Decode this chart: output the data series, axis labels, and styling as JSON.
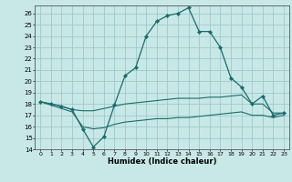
{
  "xlabel": "Humidex (Indice chaleur)",
  "background_color": "#c8e8e8",
  "grid_color": "#a0c8c8",
  "line_color": "#1a6b6b",
  "xlim": [
    -0.5,
    23.5
  ],
  "ylim": [
    14,
    26.7
  ],
  "yticks": [
    14,
    15,
    16,
    17,
    18,
    19,
    20,
    21,
    22,
    23,
    24,
    25,
    26
  ],
  "xticks": [
    0,
    1,
    2,
    3,
    4,
    5,
    6,
    7,
    8,
    9,
    10,
    11,
    12,
    13,
    14,
    15,
    16,
    17,
    18,
    19,
    20,
    21,
    22,
    23
  ],
  "series_main": {
    "x": [
      0,
      1,
      2,
      3,
      4,
      5,
      6,
      7,
      8,
      9,
      10,
      11,
      12,
      13,
      14,
      15,
      16,
      17,
      18,
      19,
      20,
      21,
      22,
      23
    ],
    "y": [
      18.2,
      18.0,
      17.8,
      17.5,
      15.8,
      14.2,
      15.1,
      17.9,
      20.5,
      21.2,
      24.0,
      25.3,
      25.8,
      26.0,
      26.5,
      24.4,
      24.4,
      23.0,
      20.3,
      19.5,
      18.0,
      18.7,
      17.0,
      17.2
    ]
  },
  "series_upper_flat": {
    "x": [
      0,
      1,
      2,
      3,
      4,
      5,
      6,
      7,
      8,
      9,
      10,
      11,
      12,
      13,
      14,
      15,
      16,
      17,
      18,
      19,
      20,
      21,
      22,
      23
    ],
    "y": [
      18.2,
      18.0,
      17.8,
      17.5,
      17.4,
      17.4,
      17.6,
      17.8,
      18.0,
      18.1,
      18.2,
      18.3,
      18.4,
      18.5,
      18.5,
      18.5,
      18.6,
      18.6,
      18.7,
      18.8,
      18.0,
      18.0,
      17.2,
      17.2
    ]
  },
  "series_lower_flat": {
    "x": [
      0,
      1,
      2,
      3,
      4,
      5,
      6,
      7,
      8,
      9,
      10,
      11,
      12,
      13,
      14,
      15,
      16,
      17,
      18,
      19,
      20,
      21,
      22,
      23
    ],
    "y": [
      18.2,
      17.9,
      17.6,
      17.3,
      16.0,
      15.8,
      15.9,
      16.2,
      16.4,
      16.5,
      16.6,
      16.7,
      16.7,
      16.8,
      16.8,
      16.9,
      17.0,
      17.1,
      17.2,
      17.3,
      17.0,
      17.0,
      16.8,
      17.0
    ]
  }
}
